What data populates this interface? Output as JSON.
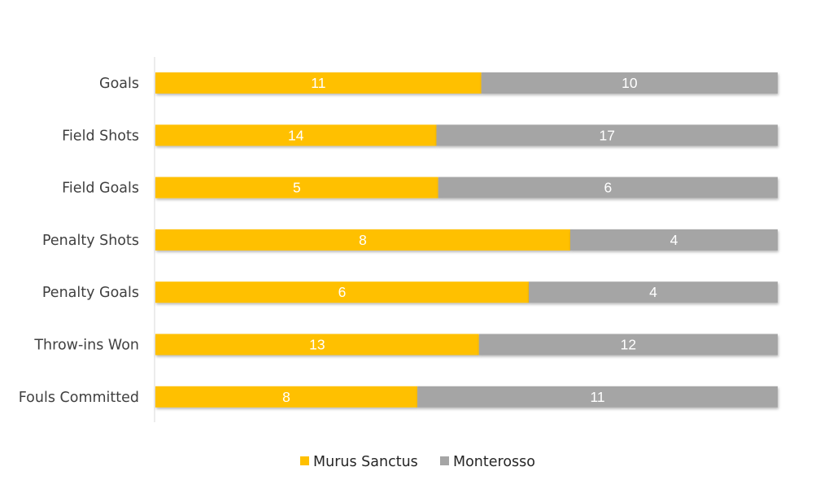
{
  "chart_data": {
    "type": "bar",
    "orientation": "horizontal",
    "stacking": "percent",
    "categories": [
      "Goals",
      "Field Shots",
      "Field Goals",
      "Penalty Shots",
      "Penalty Goals",
      "Throw-ins Won",
      "Fouls Committed"
    ],
    "series": [
      {
        "name": "Murus Sanctus",
        "values": [
          11,
          14,
          5,
          8,
          6,
          13,
          8
        ],
        "color": "#FFC000"
      },
      {
        "name": "Monterosso",
        "values": [
          10,
          17,
          6,
          4,
          4,
          12,
          11
        ],
        "color": "#A5A5A5"
      }
    ],
    "xlim": [
      0,
      100
    ],
    "data_labels": true,
    "grid": false,
    "legend": "bottom"
  }
}
